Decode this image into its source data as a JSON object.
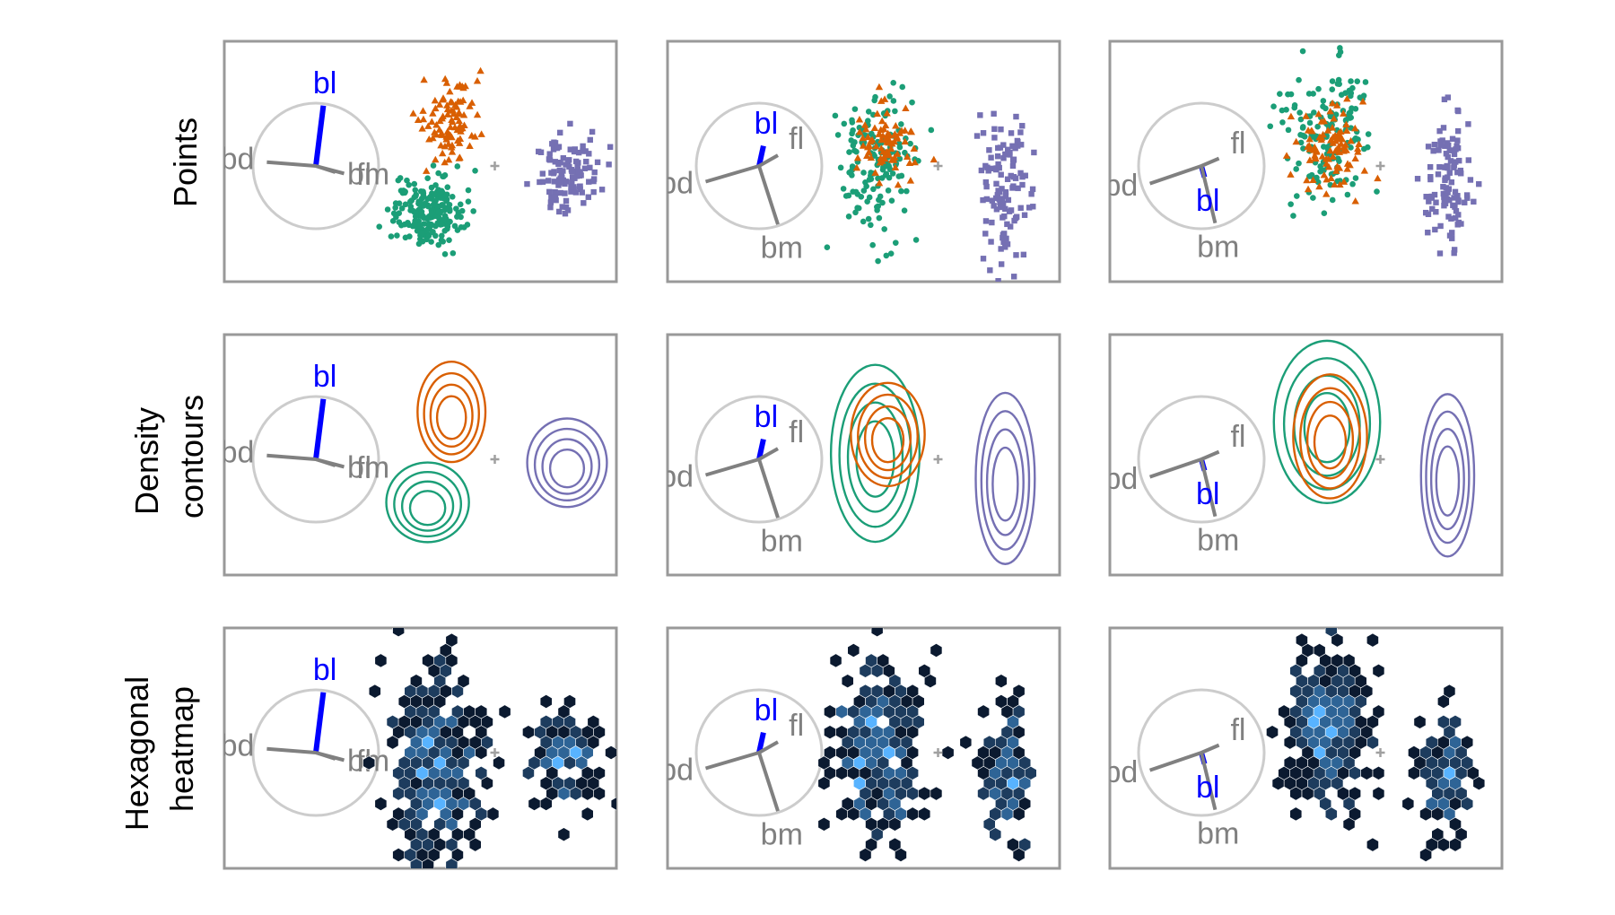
{
  "chart_data": {
    "type": "scatter",
    "grid": false,
    "legend": "none",
    "layout": "3 rows x 3 columns of tour projection frames",
    "row_labels": [
      "Points",
      "Density contours",
      "Hexagonal heatmap"
    ],
    "row_label_lines": [
      [
        "Points"
      ],
      [
        "Density",
        "contours"
      ],
      [
        "Hexagonal",
        "heatmap"
      ]
    ],
    "axis_variables": [
      "bl",
      "fl",
      "bd",
      "bm"
    ],
    "highlighted_variable": "bl",
    "colors": {
      "highlight_axis": "#0000ff",
      "axis": "#808080",
      "circle": "#cccccc",
      "frame": "#999999",
      "center_marker": "#a0a0a0",
      "groups": [
        "#1b9e77",
        "#d95f02",
        "#7570b3"
      ],
      "hex_scale": [
        "#0b1a30",
        "#1d3c5e",
        "#2e6496",
        "#58b3ff"
      ]
    },
    "group_markers": [
      "circle",
      "triangle",
      "square"
    ],
    "projections": [
      {
        "axes": [
          {
            "var": "bl",
            "x": 0.12,
            "y": 0.96
          },
          {
            "var": "fl",
            "x": 0.45,
            "y": -0.12
          },
          {
            "var": "bd",
            "x": -0.78,
            "y": 0.06
          },
          {
            "var": "bm",
            "x": 0.31,
            "y": -0.1
          }
        ],
        "groups": [
          {
            "cx": 1.78,
            "cy": -0.73,
            "sx": 0.28,
            "sy": 0.27,
            "n": 210
          },
          {
            "cx": 2.16,
            "cy": 0.71,
            "sx": 0.23,
            "sy": 0.34,
            "n": 95
          },
          {
            "cx": 4.0,
            "cy": -0.1,
            "sx": 0.27,
            "sy": 0.3,
            "n": 110
          }
        ],
        "hex": [
          {
            "cx": 1.9,
            "cy": -0.2,
            "sx": 0.35,
            "sy": 0.75,
            "n": 300
          },
          {
            "cx": 4.0,
            "cy": -0.05,
            "sx": 0.27,
            "sy": 0.38,
            "n": 110
          }
        ]
      },
      {
        "axes": [
          {
            "var": "bl",
            "x": 0.07,
            "y": 0.32
          },
          {
            "var": "fl",
            "x": 0.3,
            "y": 0.17
          },
          {
            "var": "bd",
            "x": -0.85,
            "y": -0.25
          },
          {
            "var": "bm",
            "x": 0.3,
            "y": -0.93
          }
        ],
        "groups": [
          {
            "cx": 1.85,
            "cy": 0.05,
            "sx": 0.3,
            "sy": 0.6,
            "n": 150
          },
          {
            "cx": 2.05,
            "cy": 0.35,
            "sx": 0.25,
            "sy": 0.35,
            "n": 80
          },
          {
            "cx": 3.92,
            "cy": -0.35,
            "sx": 0.2,
            "sy": 0.58,
            "n": 110
          }
        ],
        "hex": [
          {
            "cx": 1.9,
            "cy": 0.05,
            "sx": 0.35,
            "sy": 0.68,
            "n": 260
          },
          {
            "cx": 3.93,
            "cy": -0.4,
            "sx": 0.2,
            "sy": 0.55,
            "n": 110
          }
        ]
      },
      {
        "axes": [
          {
            "var": "bl",
            "x": 0.05,
            "y": -0.18
          },
          {
            "var": "fl",
            "x": 0.28,
            "y": 0.12
          },
          {
            "var": "bd",
            "x": -0.82,
            "y": -0.28
          },
          {
            "var": "bm",
            "x": 0.22,
            "y": -0.91
          }
        ],
        "groups": [
          {
            "cx": 2.0,
            "cy": 0.55,
            "sx": 0.36,
            "sy": 0.55,
            "n": 150
          },
          {
            "cx": 2.05,
            "cy": 0.32,
            "sx": 0.25,
            "sy": 0.42,
            "n": 95
          },
          {
            "cx": 3.92,
            "cy": -0.3,
            "sx": 0.18,
            "sy": 0.55,
            "n": 110
          }
        ],
        "hex": [
          {
            "cx": 2.0,
            "cy": 0.45,
            "sx": 0.35,
            "sy": 0.6,
            "n": 260
          },
          {
            "cx": 3.9,
            "cy": -0.35,
            "sx": 0.19,
            "sy": 0.55,
            "n": 110
          }
        ]
      }
    ]
  }
}
